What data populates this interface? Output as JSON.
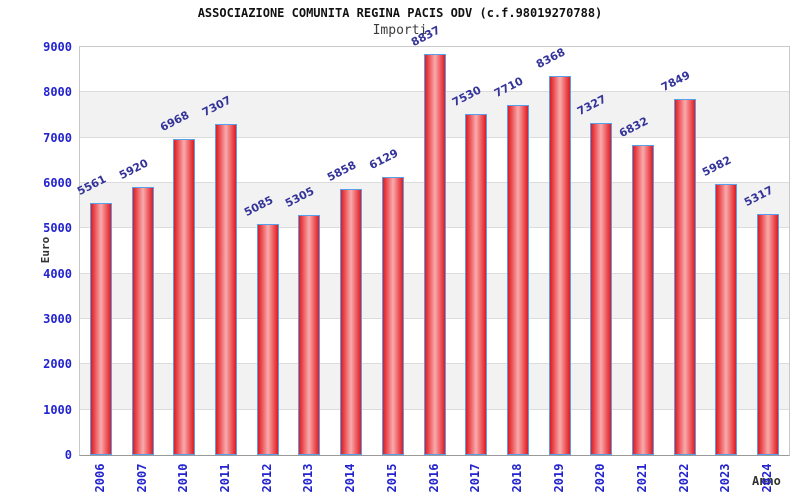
{
  "header": {
    "title": "ASSOCIAZIONE COMUNITA REGINA PACIS ODV (c.f.98019270788)",
    "subtitle": "Importi"
  },
  "chart_data": {
    "type": "bar",
    "title": "ASSOCIAZIONE COMUNITA REGINA PACIS ODV (c.f.98019270788)",
    "subtitle": "Importi",
    "xlabel": "Anno",
    "ylabel": "Euro",
    "categories": [
      "2006",
      "2007",
      "2010",
      "2011",
      "2012",
      "2013",
      "2014",
      "2015",
      "2016",
      "2017",
      "2018",
      "2019",
      "2020",
      "2021",
      "2022",
      "2023",
      "2024"
    ],
    "values": [
      5561,
      5920,
      6968,
      7307,
      5085,
      5305,
      5858,
      6129,
      8837,
      7530,
      7710,
      8368,
      7327,
      6832,
      7849,
      5982,
      5317
    ],
    "ylim": [
      0,
      9000
    ],
    "yticks": [
      0,
      1000,
      2000,
      3000,
      4000,
      5000,
      6000,
      7000,
      8000,
      9000
    ],
    "grid": "horizontal-bands",
    "legend_position": "none",
    "colors": {
      "bar_fill_edge": "#dd1c21",
      "bar_fill_center": "#f9abad",
      "bar_border": "#58a0ee",
      "band": "#f2f2f2",
      "gridline": "#dcdcdc",
      "axis_tick_text": "#2323cf",
      "value_label_text": "#333399",
      "axis_title_text": "#333333",
      "title_text": "#111111"
    }
  }
}
